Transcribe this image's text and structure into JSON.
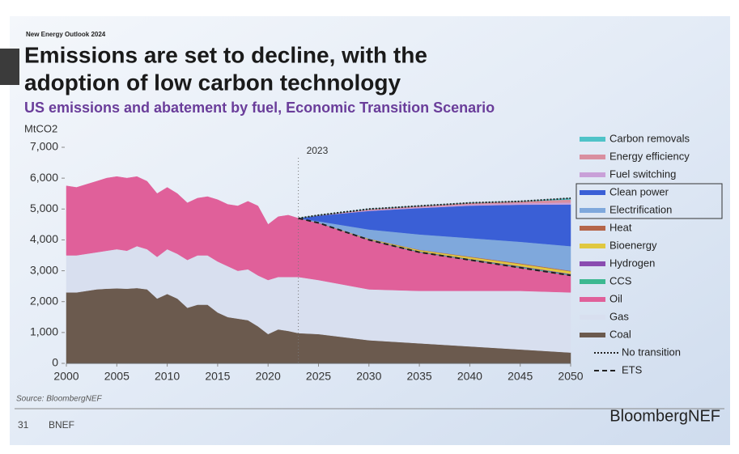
{
  "header": {
    "kicker": "New Energy Outlook 2024",
    "title_line1": "Emissions are set to decline, with the",
    "title_line2": "adoption of low carbon technology"
  },
  "chart_data": {
    "type": "stacked_area",
    "subtitle": "US emissions and abatement by fuel, Economic Transition Scenario",
    "y_label": "MtCO2",
    "annotation": {
      "text": "2023",
      "x": 2023
    },
    "x": [
      2000,
      2001,
      2002,
      2003,
      2004,
      2005,
      2006,
      2007,
      2008,
      2009,
      2010,
      2011,
      2012,
      2013,
      2014,
      2015,
      2016,
      2017,
      2018,
      2019,
      2020,
      2021,
      2022,
      2023,
      2025,
      2030,
      2035,
      2040,
      2045,
      2050
    ],
    "xlim": [
      2000,
      2050
    ],
    "xticks": [
      2000,
      2005,
      2010,
      2015,
      2020,
      2025,
      2030,
      2035,
      2040,
      2045,
      2050
    ],
    "ylim": [
      0,
      7000
    ],
    "yticks": [
      0,
      {
        "value": 1000,
        "label": "1,000"
      },
      {
        "value": 2000,
        "label": "2,000"
      },
      {
        "value": 3000,
        "label": "3,000"
      },
      {
        "value": 4000,
        "label": "4,000"
      },
      {
        "value": 5000,
        "label": "5,000"
      },
      {
        "value": 6000,
        "label": "6,000"
      },
      {
        "value": 7000,
        "label": "7,000"
      }
    ],
    "series": [
      {
        "name": "Carbon removals",
        "color": "#4fc3c8",
        "values": [
          null,
          null,
          null,
          null,
          null,
          null,
          null,
          null,
          null,
          null,
          null,
          null,
          null,
          null,
          null,
          null,
          null,
          null,
          null,
          null,
          null,
          null,
          null,
          0,
          0,
          0,
          0,
          0,
          0,
          40
        ]
      },
      {
        "name": "Energy efficiency",
        "color": "#d98fa0",
        "values": [
          null,
          null,
          null,
          null,
          null,
          null,
          null,
          null,
          null,
          null,
          null,
          null,
          null,
          null,
          null,
          null,
          null,
          null,
          null,
          null,
          null,
          null,
          null,
          0,
          10,
          40,
          40,
          50,
          60,
          100
        ]
      },
      {
        "name": "Fuel switching",
        "color": "#c9a0d8",
        "values": [
          null,
          null,
          null,
          null,
          null,
          null,
          null,
          null,
          null,
          null,
          null,
          null,
          null,
          null,
          null,
          null,
          null,
          null,
          null,
          null,
          null,
          null,
          null,
          0,
          5,
          20,
          30,
          40,
          50,
          60
        ]
      },
      {
        "name": "Clean power",
        "color": "#3a5fd6",
        "values": [
          null,
          null,
          null,
          null,
          null,
          null,
          null,
          null,
          null,
          null,
          null,
          null,
          null,
          null,
          null,
          null,
          null,
          null,
          null,
          null,
          null,
          null,
          null,
          0,
          180,
          600,
          850,
          1050,
          1200,
          1350
        ]
      },
      {
        "name": "Electrification",
        "color": "#7fa8dc",
        "values": [
          null,
          null,
          null,
          null,
          null,
          null,
          null,
          null,
          null,
          null,
          null,
          null,
          null,
          null,
          null,
          null,
          null,
          null,
          null,
          null,
          null,
          null,
          null,
          0,
          50,
          300,
          500,
          600,
          700,
          800
        ]
      },
      {
        "name": "Heat",
        "color": "#b5654a",
        "values": [
          null,
          null,
          null,
          null,
          null,
          null,
          null,
          null,
          null,
          null,
          null,
          null,
          null,
          null,
          null,
          null,
          null,
          null,
          null,
          null,
          null,
          null,
          null,
          0,
          0,
          5,
          10,
          15,
          20,
          20
        ]
      },
      {
        "name": "Bioenergy",
        "color": "#e0c840",
        "values": [
          null,
          null,
          null,
          null,
          null,
          null,
          null,
          null,
          null,
          null,
          null,
          null,
          null,
          null,
          null,
          null,
          null,
          null,
          null,
          null,
          null,
          null,
          null,
          0,
          5,
          20,
          40,
          60,
          70,
          80
        ]
      },
      {
        "name": "Hydrogen",
        "color": "#8a4cb0",
        "values": [
          null,
          null,
          null,
          null,
          null,
          null,
          null,
          null,
          null,
          null,
          null,
          null,
          null,
          null,
          null,
          null,
          null,
          null,
          null,
          null,
          null,
          null,
          null,
          0,
          0,
          5,
          10,
          15,
          20,
          20
        ]
      },
      {
        "name": "CCS",
        "color": "#3cb890",
        "values": [
          null,
          null,
          null,
          null,
          null,
          null,
          null,
          null,
          null,
          null,
          null,
          null,
          null,
          null,
          null,
          null,
          null,
          null,
          null,
          null,
          null,
          null,
          null,
          0,
          0,
          10,
          20,
          20,
          30,
          30
        ]
      },
      {
        "name": "Oil",
        "color": "#e0609a",
        "values": [
          2250,
          2200,
          2250,
          2300,
          2350,
          2350,
          2350,
          2250,
          2200,
          2050,
          2000,
          1950,
          1850,
          1850,
          1900,
          2000,
          2000,
          2100,
          2200,
          2250,
          1800,
          1950,
          2000,
          1900,
          1850,
          1600,
          1250,
          1000,
          750,
          550
        ]
      },
      {
        "name": "Gas",
        "color": "#d8dfef",
        "values": [
          1200,
          1200,
          1200,
          1200,
          1230,
          1270,
          1230,
          1360,
          1300,
          1350,
          1450,
          1450,
          1550,
          1600,
          1600,
          1650,
          1650,
          1550,
          1650,
          1650,
          1750,
          1700,
          1750,
          1820,
          1750,
          1650,
          1700,
          1800,
          1900,
          1950
        ]
      },
      {
        "name": "Coal",
        "color": "#6b5a4e",
        "values": [
          2300,
          2300,
          2350,
          2400,
          2420,
          2430,
          2420,
          2440,
          2400,
          2100,
          2250,
          2100,
          1800,
          1900,
          1900,
          1650,
          1500,
          1450,
          1400,
          1200,
          950,
          1100,
          1050,
          980,
          950,
          750,
          650,
          550,
          450,
          350
        ]
      }
    ],
    "lines": [
      {
        "name": "No transition",
        "color": "#222222",
        "style": "dotted",
        "values": [
          null,
          null,
          null,
          null,
          null,
          null,
          null,
          null,
          null,
          null,
          null,
          null,
          null,
          null,
          null,
          null,
          null,
          null,
          null,
          null,
          null,
          null,
          null,
          4700,
          4800,
          5000,
          5100,
          5200,
          5250,
          5350
        ]
      },
      {
        "name": "ETS",
        "color": "#222222",
        "style": "dashed",
        "values": [
          null,
          null,
          null,
          null,
          null,
          null,
          null,
          null,
          null,
          null,
          null,
          null,
          null,
          null,
          null,
          null,
          null,
          null,
          null,
          null,
          null,
          null,
          null,
          4700,
          4550,
          4000,
          3600,
          3350,
          3100,
          2850
        ]
      }
    ],
    "source": "Source: BloombergNEF"
  },
  "footer": {
    "page": "31",
    "org": "BNEF",
    "logo": "BloombergNEF"
  }
}
